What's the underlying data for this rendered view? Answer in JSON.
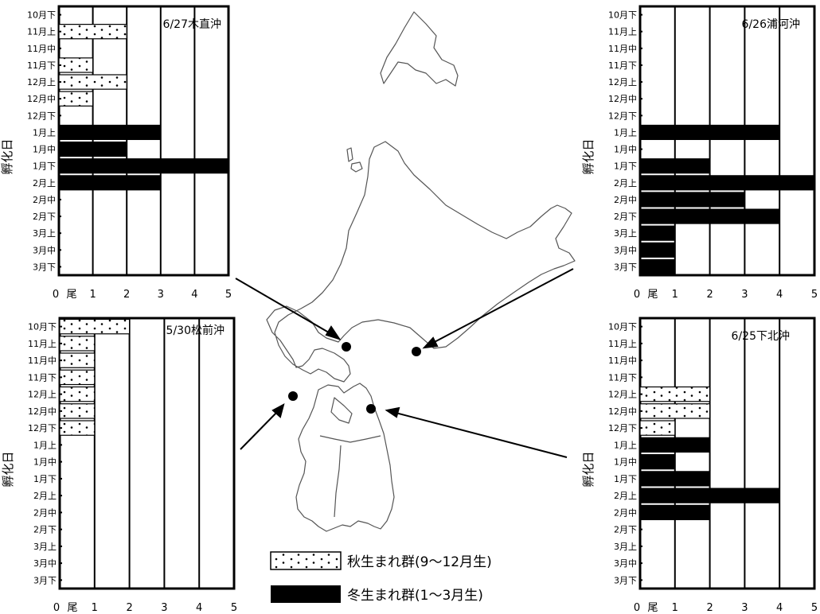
{
  "chart_data": [
    {
      "type": "bar",
      "orientation": "horizontal",
      "title": "6/27木直沖",
      "ylabel": "孵化日",
      "xlim": [
        0,
        5
      ],
      "x_ticks": [
        "0",
        "1",
        "2",
        "3",
        "4",
        "5"
      ],
      "x_unit": "尾",
      "categories": [
        "10月下",
        "11月上",
        "11月中",
        "11月下",
        "12月上",
        "12月中",
        "12月下",
        "1月上",
        "1月中",
        "1月下",
        "2月上",
        "2月中",
        "2月下",
        "3月上",
        "3月中",
        "3月下"
      ],
      "series": [
        {
          "group": "autumn",
          "values": [
            0,
            2,
            0,
            1,
            2,
            1,
            0,
            0,
            0,
            0,
            0,
            0,
            0,
            0,
            0,
            0
          ]
        },
        {
          "group": "winter",
          "values": [
            0,
            0,
            0,
            0,
            0,
            0,
            0,
            3,
            2,
            5,
            3,
            0,
            0,
            0,
            0,
            0
          ]
        }
      ]
    },
    {
      "type": "bar",
      "orientation": "horizontal",
      "title": "6/26浦河沖",
      "ylabel": "孵化日",
      "xlim": [
        0,
        5
      ],
      "x_ticks": [
        "0",
        "1",
        "2",
        "3",
        "4",
        "5"
      ],
      "x_unit": "尾",
      "categories": [
        "10月下",
        "11月上",
        "11月中",
        "11月下",
        "12月上",
        "12月中",
        "12月下",
        "1月上",
        "1月中",
        "1月下",
        "2月上",
        "2月中",
        "2月下",
        "3月上",
        "3月中",
        "3月下"
      ],
      "series": [
        {
          "group": "autumn",
          "values": [
            0,
            0,
            0,
            0,
            0,
            0,
            0,
            0,
            0,
            0,
            0,
            0,
            0,
            0,
            0,
            0
          ]
        },
        {
          "group": "winter",
          "values": [
            0,
            0,
            0,
            0,
            0,
            0,
            0,
            4,
            0,
            2,
            5,
            3,
            4,
            1,
            1,
            1
          ]
        }
      ]
    },
    {
      "type": "bar",
      "orientation": "horizontal",
      "title": "5/30松前沖",
      "ylabel": "孵化日",
      "xlim": [
        0,
        5
      ],
      "x_ticks": [
        "0",
        "1",
        "2",
        "3",
        "4",
        "5"
      ],
      "x_unit": "尾",
      "categories": [
        "10月下",
        "11月上",
        "11月中",
        "11月下",
        "12月上",
        "12月中",
        "12月下",
        "1月上",
        "1月中",
        "1月下",
        "2月上",
        "2月中",
        "2月下",
        "3月上",
        "3月中",
        "3月下"
      ],
      "series": [
        {
          "group": "autumn",
          "values": [
            2,
            1,
            1,
            1,
            1,
            1,
            1,
            0,
            0,
            0,
            0,
            0,
            0,
            0,
            0,
            0
          ]
        },
        {
          "group": "winter",
          "values": [
            0,
            0,
            0,
            0,
            0,
            0,
            0,
            0,
            0,
            0,
            0,
            0,
            0,
            0,
            0,
            0
          ]
        }
      ]
    },
    {
      "type": "bar",
      "orientation": "horizontal",
      "title": "6/25下北沖",
      "ylabel": "孵化日",
      "xlim": [
        0,
        5
      ],
      "x_ticks": [
        "0",
        "1",
        "2",
        "3",
        "4",
        "5"
      ],
      "x_unit": "尾",
      "categories": [
        "10月下",
        "11月上",
        "11月中",
        "11月下",
        "12月上",
        "12月中",
        "12月下",
        "1月上",
        "1月中",
        "1月下",
        "2月上",
        "2月中",
        "2月下",
        "3月上",
        "3月中",
        "3月下"
      ],
      "series": [
        {
          "group": "autumn",
          "values": [
            0,
            0,
            0,
            0,
            2,
            2,
            1,
            0,
            0,
            0,
            0,
            0,
            0,
            0,
            0,
            0
          ]
        },
        {
          "group": "winter",
          "values": [
            0,
            0,
            0,
            0,
            0,
            0,
            0,
            2,
            1,
            2,
            4,
            2,
            0,
            0,
            0,
            0
          ]
        }
      ]
    }
  ],
  "legend": {
    "placement": "bottom-center",
    "items": [
      {
        "key": "autumn",
        "label": "秋生まれ群(9〜12月生)",
        "fill": "dotted"
      },
      {
        "key": "winter",
        "label": "冬生まれ群(1〜3月生)",
        "fill": "#000000"
      }
    ]
  },
  "map": {
    "description_icon": "hokkaido-tohoku-map",
    "locations": [
      "木直沖",
      "浦河沖",
      "松前沖",
      "下北沖"
    ]
  },
  "colors": {
    "ink": "#000000",
    "map_line": "#555555",
    "background": "#ffffff"
  }
}
